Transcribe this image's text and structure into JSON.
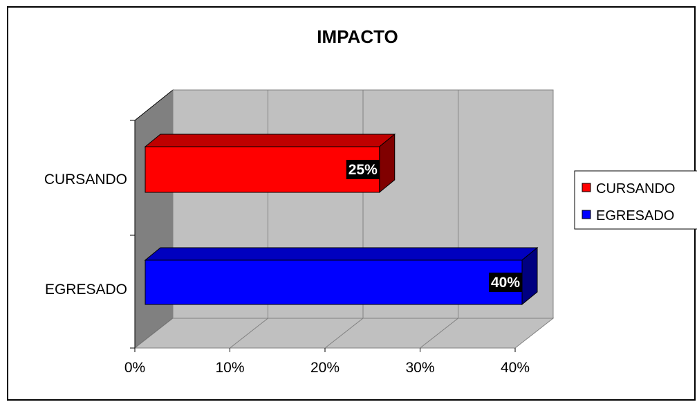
{
  "chart_data": {
    "type": "bar",
    "orientation": "horizontal",
    "style": "3d",
    "title": "IMPACTO",
    "categories": [
      "CURSANDO",
      "EGRESADO"
    ],
    "values": [
      25,
      40
    ],
    "data_labels": [
      "25%",
      "40%"
    ],
    "colors": [
      "#ff0000",
      "#0000ff"
    ],
    "xlim": [
      0,
      40
    ],
    "x_ticks": [
      "0%",
      "10%",
      "20%",
      "30%",
      "40%"
    ],
    "xlabel": "",
    "ylabel": "",
    "grid": true,
    "legend": {
      "placement": "right",
      "entries": [
        {
          "label": "CURSANDO",
          "color": "#ff0000"
        },
        {
          "label": "EGRESADO",
          "color": "#0000ff"
        }
      ]
    }
  }
}
